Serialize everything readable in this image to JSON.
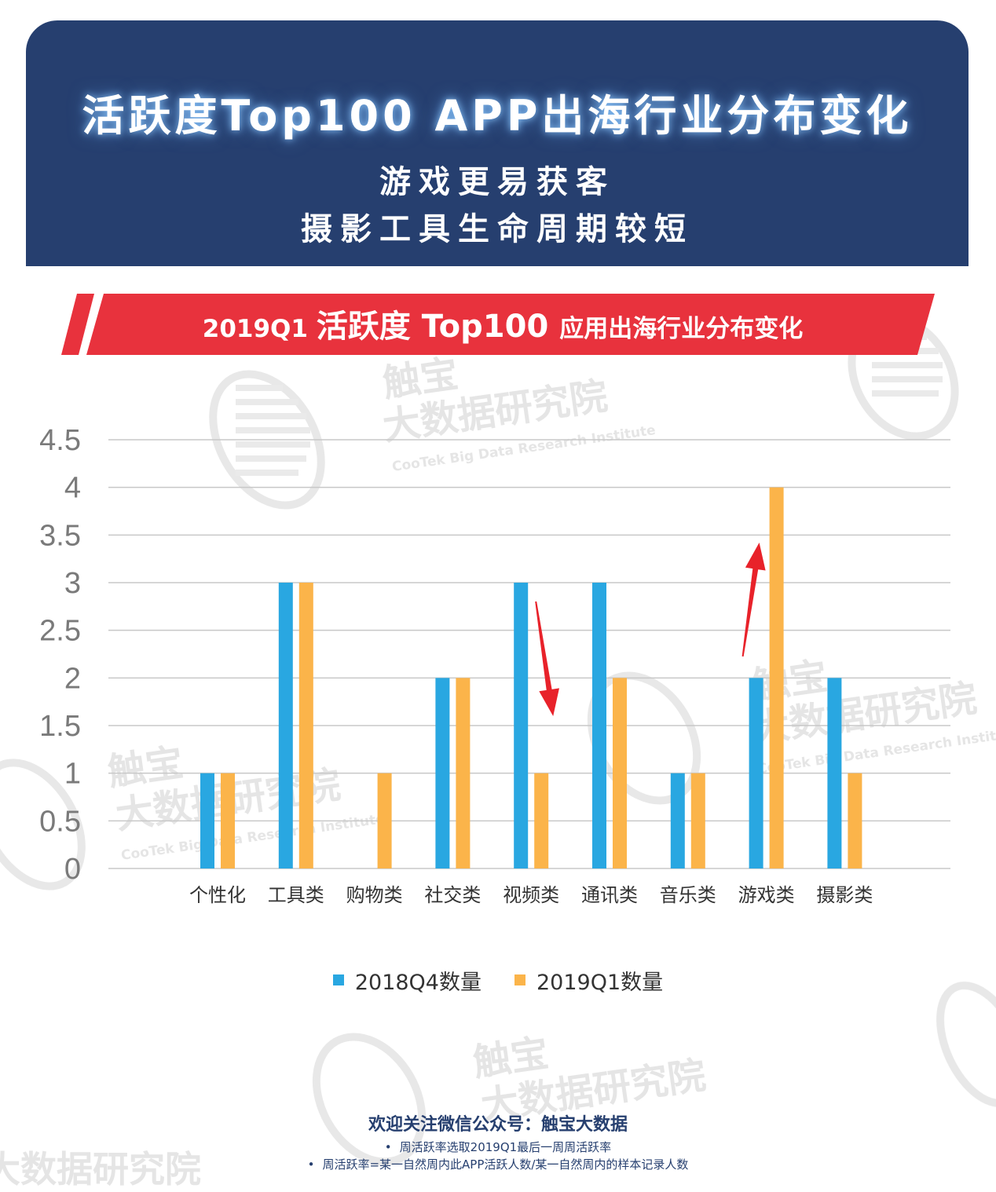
{
  "header": {
    "title": "活跃度Top100 APP出海行业分布变化",
    "subtitle_line1": "游戏更易获客",
    "subtitle_line2": "摄影工具生命周期较短"
  },
  "banner": {
    "prefix": "2019Q1 ",
    "highlight": "活跃度 Top100 ",
    "suffix": "应用出海行业分布变化"
  },
  "watermark": {
    "cn_line1": "触宝",
    "cn_line2": "大数据研究院",
    "en": "CooTek Big Data Research Institute"
  },
  "chart_data": {
    "type": "bar",
    "categories": [
      "个性化",
      "工具类",
      "购物类",
      "社交类",
      "视频类",
      "通讯类",
      "音乐类",
      "游戏类",
      "摄影类"
    ],
    "series": [
      {
        "name": "2018Q4数量",
        "values": [
          1,
          3,
          0,
          2,
          3,
          3,
          1,
          2,
          2
        ],
        "color": "#29a7e1"
      },
      {
        "name": "2019Q1数量",
        "values": [
          1,
          3,
          1,
          2,
          1,
          2,
          1,
          4,
          1
        ],
        "color": "#fbb44a"
      }
    ],
    "yticks": [
      "0",
      "0.5",
      "1",
      "1.5",
      "2",
      "2.5",
      "3",
      "3.5",
      "4",
      "4.5"
    ],
    "ylim": [
      0,
      4.5
    ],
    "grid": true,
    "legend_position": "bottom",
    "annotations": [
      {
        "category": "视频类",
        "type": "arrow-down",
        "color": "#e8222a"
      },
      {
        "category": "游戏类",
        "type": "arrow-up",
        "color": "#e8222a"
      }
    ]
  },
  "footer": {
    "title": "欢迎关注微信公众号：触宝大数据",
    "notes": [
      "周活跃率选取2019Q1最后一周周活跃率",
      "周活跃率=某一自然周内此APP活跃人数/某一自然周内的样本记录人数"
    ]
  },
  "colors": {
    "header_bg": "#263f6f",
    "banner_red": "#e8323d",
    "series1": "#29a7e1",
    "series2": "#fbb44a",
    "arrow": "#e8222a"
  }
}
